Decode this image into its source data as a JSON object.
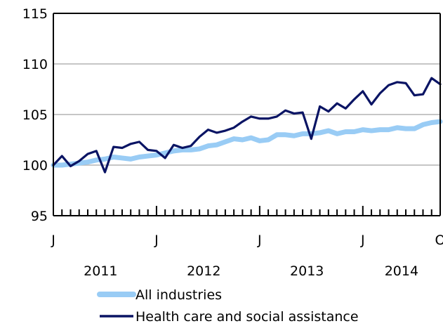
{
  "chart_data": {
    "type": "line",
    "title": "",
    "xlabel": "",
    "ylabel": "",
    "ylim": [
      95,
      115
    ],
    "yticks": [
      95,
      100,
      105,
      110,
      115
    ],
    "grid": "horizontal",
    "legend_position": "bottom",
    "x_month_labels": [
      {
        "index": 0,
        "label": "J"
      },
      {
        "index": 12,
        "label": "J"
      },
      {
        "index": 24,
        "label": "J"
      },
      {
        "index": 36,
        "label": "J"
      },
      {
        "index": 45,
        "label": "O"
      }
    ],
    "x_year_labels": [
      {
        "year": "2011",
        "start": 0,
        "end": 11
      },
      {
        "year": "2012",
        "start": 12,
        "end": 23
      },
      {
        "year": "2013",
        "start": 24,
        "end": 35
      },
      {
        "year": "2014",
        "start": 36,
        "end": 45
      }
    ],
    "x": [
      "2011-01",
      "2011-02",
      "2011-03",
      "2011-04",
      "2011-05",
      "2011-06",
      "2011-07",
      "2011-08",
      "2011-09",
      "2011-10",
      "2011-11",
      "2011-12",
      "2012-01",
      "2012-02",
      "2012-03",
      "2012-04",
      "2012-05",
      "2012-06",
      "2012-07",
      "2012-08",
      "2012-09",
      "2012-10",
      "2012-11",
      "2012-12",
      "2013-01",
      "2013-02",
      "2013-03",
      "2013-04",
      "2013-05",
      "2013-06",
      "2013-07",
      "2013-08",
      "2013-09",
      "2013-10",
      "2013-11",
      "2013-12",
      "2014-01",
      "2014-02",
      "2014-03",
      "2014-04",
      "2014-05",
      "2014-06",
      "2014-07",
      "2014-08",
      "2014-09",
      "2014-10"
    ],
    "series": [
      {
        "name": "All industries",
        "color": "#99ccf5",
        "values": [
          100.0,
          100.0,
          100.1,
          100.2,
          100.3,
          100.5,
          100.6,
          100.8,
          100.7,
          100.6,
          100.8,
          100.9,
          101.0,
          101.2,
          101.4,
          101.5,
          101.5,
          101.6,
          101.9,
          102.0,
          102.3,
          102.6,
          102.5,
          102.7,
          102.4,
          102.5,
          103.0,
          103.0,
          102.9,
          103.1,
          103.1,
          103.2,
          103.4,
          103.1,
          103.3,
          103.3,
          103.5,
          103.4,
          103.5,
          103.5,
          103.7,
          103.6,
          103.6,
          104.0,
          104.2,
          104.3
        ]
      },
      {
        "name": "Health care and social assistance",
        "color": "#0a1464",
        "values": [
          100.0,
          100.9,
          99.9,
          100.4,
          101.1,
          101.4,
          99.3,
          101.8,
          101.7,
          102.1,
          102.3,
          101.5,
          101.4,
          100.7,
          102.0,
          101.7,
          101.9,
          102.8,
          103.5,
          103.2,
          103.4,
          103.7,
          104.3,
          104.8,
          104.6,
          104.6,
          104.8,
          105.4,
          105.1,
          105.2,
          102.6,
          105.8,
          105.3,
          106.1,
          105.6,
          106.5,
          107.3,
          106.0,
          107.1,
          107.9,
          108.2,
          108.1,
          106.9,
          107.0,
          108.6,
          108.0
        ]
      }
    ]
  }
}
